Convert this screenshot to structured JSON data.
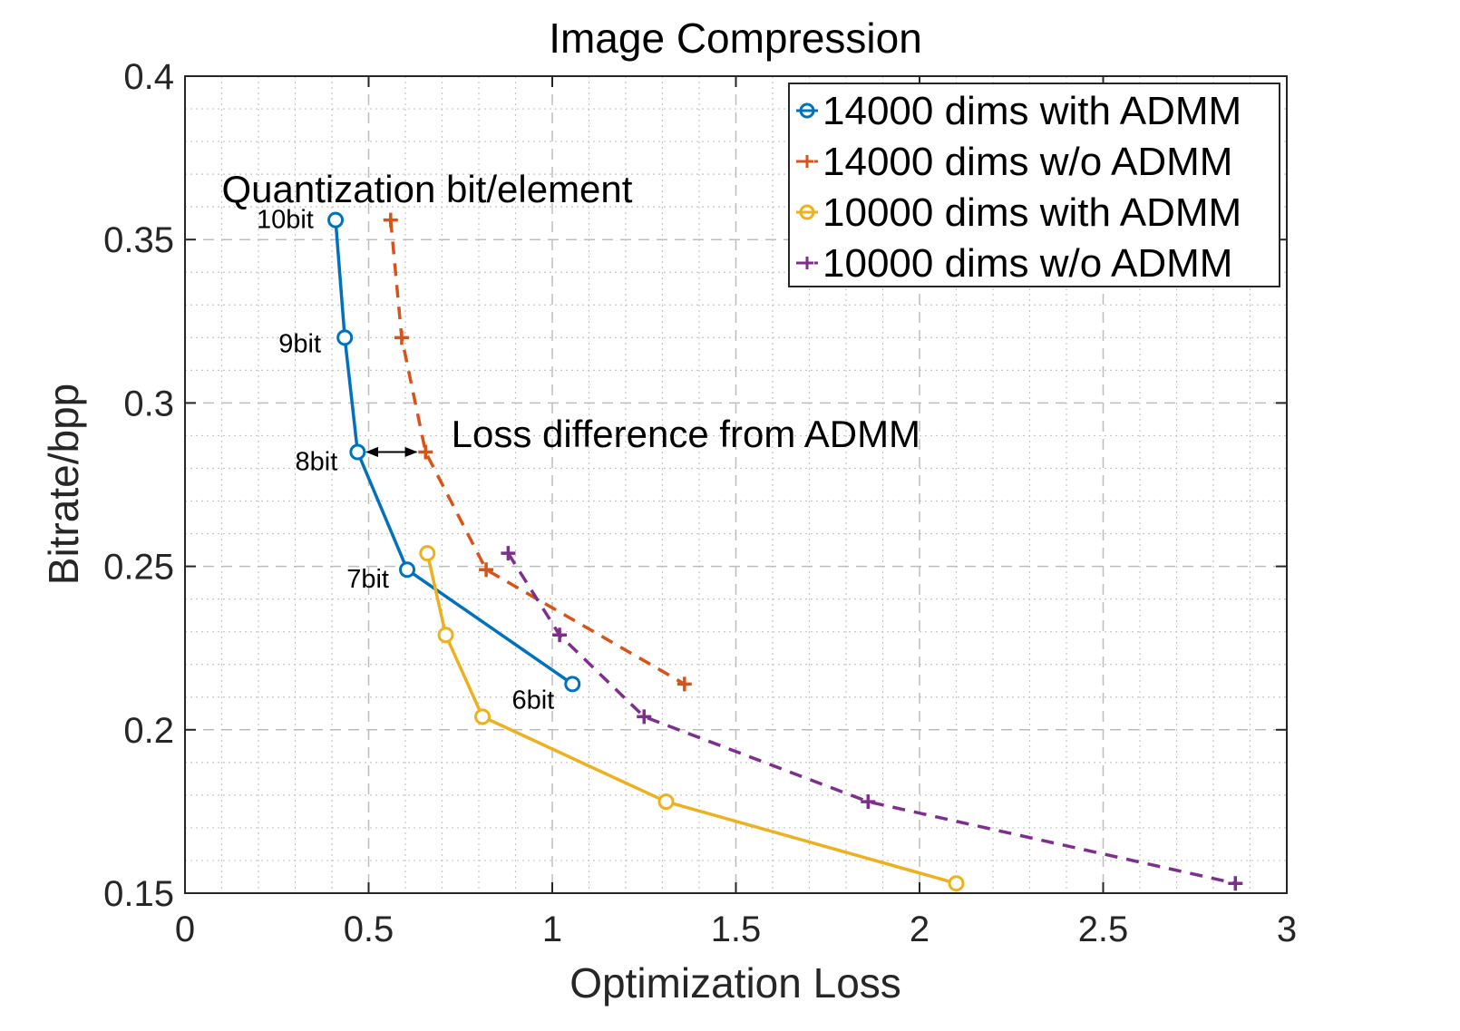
{
  "chart_data": {
    "type": "line",
    "title": "Image Compression",
    "xlabel": "Optimization Loss",
    "ylabel": "Bitrate/bpp",
    "xlim": [
      0,
      3
    ],
    "ylim": [
      0.15,
      0.4
    ],
    "xticks": [
      "0",
      "0.5",
      "1",
      "1.5",
      "2",
      "2.5",
      "3"
    ],
    "yticks": [
      "0.15",
      "0.2",
      "0.25",
      "0.3",
      "0.35",
      "0.4"
    ],
    "grid": "on",
    "legend_position": "top-right",
    "series": [
      {
        "name": "14000 dims with ADMM",
        "color": "#0072BD",
        "marker": "circle",
        "line_style": "solid",
        "points": [
          [
            0.41,
            0.356
          ],
          [
            0.435,
            0.32
          ],
          [
            0.47,
            0.285
          ],
          [
            0.605,
            0.249
          ],
          [
            1.055,
            0.214
          ]
        ]
      },
      {
        "name": "14000 dims w/o ADMM",
        "color": "#D95319",
        "marker": "plus",
        "line_style": "dashed",
        "points": [
          [
            0.56,
            0.356
          ],
          [
            0.59,
            0.32
          ],
          [
            0.655,
            0.285
          ],
          [
            0.82,
            0.249
          ],
          [
            1.36,
            0.214
          ]
        ]
      },
      {
        "name": "10000 dims with ADMM",
        "color": "#EDB120",
        "marker": "circle",
        "line_style": "solid",
        "points": [
          [
            0.66,
            0.254
          ],
          [
            0.71,
            0.229
          ],
          [
            0.81,
            0.204
          ],
          [
            1.31,
            0.178
          ],
          [
            2.1,
            0.153
          ]
        ]
      },
      {
        "name": "10000 dims w/o ADMM",
        "color": "#7E2F8E",
        "marker": "plus",
        "line_style": "dashed",
        "points": [
          [
            0.88,
            0.254
          ],
          [
            1.02,
            0.229
          ],
          [
            1.25,
            0.204
          ],
          [
            1.86,
            0.178
          ],
          [
            2.86,
            0.153
          ]
        ]
      }
    ],
    "annotations": [
      {
        "text": "Quantization bit/element",
        "x": 0.1,
        "y": 0.3615
      },
      {
        "text": "Loss difference from ADMM",
        "x": 0.725,
        "y": 0.2865
      },
      {
        "text": "10bit",
        "x": 0.195,
        "y": 0.3535
      },
      {
        "text": "9bit",
        "x": 0.255,
        "y": 0.3155
      },
      {
        "text": "8bit",
        "x": 0.3,
        "y": 0.2795
      },
      {
        "text": "7bit",
        "x": 0.44,
        "y": 0.2435
      },
      {
        "text": "6bit",
        "x": 0.89,
        "y": 0.2065
      }
    ],
    "arrow": {
      "from": [
        0.495,
        0.285
      ],
      "to": [
        0.63,
        0.285
      ]
    }
  }
}
